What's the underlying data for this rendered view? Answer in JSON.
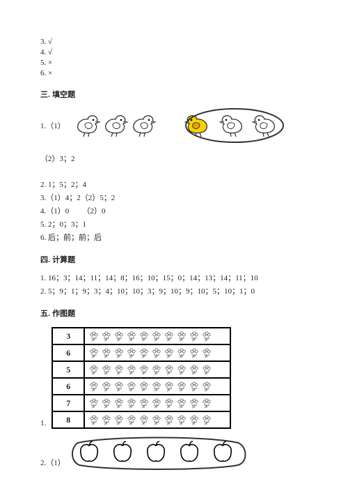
{
  "top_answers": [
    "3. √",
    "4. √",
    "5. ×",
    "6. ×"
  ],
  "section3": {
    "heading": "三. 填空题",
    "q1_label": "1.（1）",
    "q1_sub2": "（2）3；2",
    "lines": [
      "2. 1；5；2；4",
      "3.（1）4；2（2）5；2",
      "4.（1）0       （2）0",
      "5. 2；0；3；1",
      "6. 后；前；前；后"
    ]
  },
  "section4": {
    "heading": "四. 计算题",
    "lines": [
      "1. 16；3；14；11；14；8；16；10；15；0；14；13；14；11；10",
      "2. 5；9；1；9；3；4；10；10；3；9；10；9；10；5；10；1；0"
    ]
  },
  "section5": {
    "heading": "五. 作图题",
    "q1_label": "1.",
    "q2_label": "2.（1）",
    "table_rows": [
      {
        "n": "3",
        "flowers": 10
      },
      {
        "n": "6",
        "flowers": 10
      },
      {
        "n": "5",
        "flowers": 10
      },
      {
        "n": "6",
        "flowers": 10
      },
      {
        "n": "7",
        "flowers": 10
      },
      {
        "n": "8",
        "flowers": 10
      }
    ],
    "apple_count": 5,
    "apple_circle_count": 5
  },
  "colors": {
    "ink": "#222222",
    "bird_yellow_body": "#f5d200",
    "bird_yellow_wing": "#f0a000",
    "stroke": "#333333",
    "leaf": "#808080"
  }
}
